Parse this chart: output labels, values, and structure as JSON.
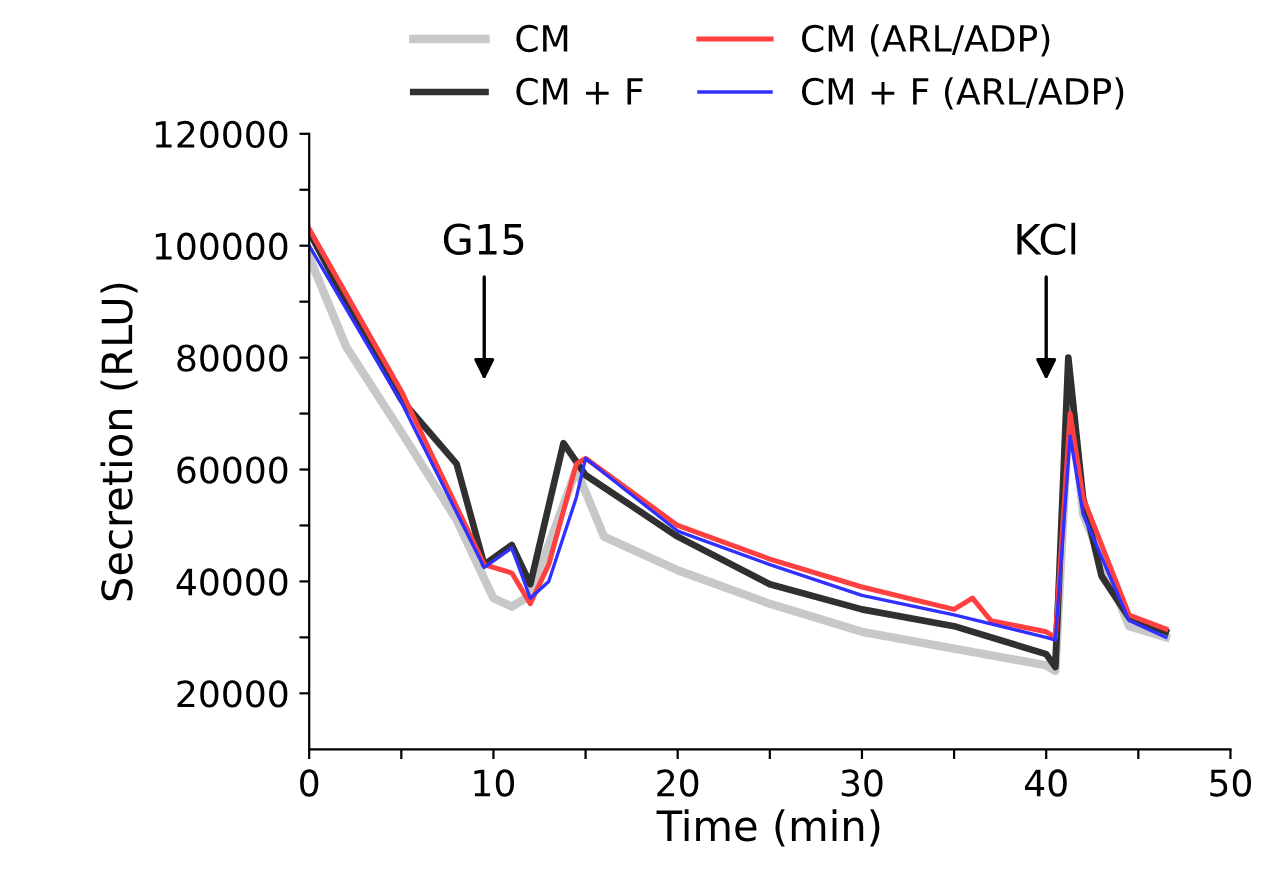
{
  "chart_data": {
    "type": "line",
    "xlabel": "Time (min)",
    "ylabel": "Secretion (RLU)",
    "xlim": [
      0,
      50
    ],
    "xticks": [
      0,
      {
        "value": 5,
        "label": null
      },
      10,
      {
        "value": 15,
        "label": null
      },
      20,
      {
        "value": 25,
        "label": null
      },
      30,
      {
        "value": 35,
        "label": null
      },
      40,
      {
        "value": 45,
        "label": null
      },
      50
    ],
    "ylim": [
      10000,
      120000
    ],
    "yticks": [
      20000,
      {
        "value": 30000,
        "label": null
      },
      40000,
      {
        "value": 50000,
        "label": null
      },
      60000,
      {
        "value": 70000,
        "label": null
      },
      80000,
      {
        "value": 90000,
        "label": null
      },
      100000,
      {
        "value": 110000,
        "label": null
      },
      120000
    ],
    "grid": false,
    "legend": "top",
    "marker": "none",
    "line_style": "solid",
    "series": [
      {
        "name": "CM",
        "color": "#c8c8c8",
        "x": [
          0,
          2,
          5,
          8,
          10,
          11,
          12,
          13,
          14.5,
          16,
          20,
          25,
          30,
          35,
          40,
          40.5,
          41.3,
          42,
          44.5,
          46.5
        ],
        "values": [
          98000,
          82000,
          66700,
          51000,
          37000,
          35500,
          37500,
          46500,
          60000,
          48000,
          42000,
          36000,
          31000,
          28000,
          25000,
          24000,
          75000,
          52000,
          32000,
          30000
        ]
      },
      {
        "name": "CM + F",
        "color": "#303030",
        "x": [
          0,
          2,
          5,
          8,
          9.5,
          11,
          12,
          13.8,
          15,
          20,
          25,
          30,
          35,
          40,
          40.5,
          41.2,
          42,
          43,
          44.5,
          46.5
        ],
        "values": [
          102500,
          90000,
          72500,
          61000,
          43000,
          46500,
          39500,
          64700,
          59000,
          48000,
          39500,
          35000,
          32000,
          27000,
          24700,
          80000,
          55000,
          41000,
          33500,
          31000
        ]
      },
      {
        "name": "CM (ARL/ADP)",
        "color": "#ff4040",
        "x": [
          0,
          5,
          9.5,
          11,
          12,
          13,
          14.5,
          15,
          20,
          25,
          30,
          35,
          36,
          37,
          40,
          40.5,
          41.3,
          42,
          44.5,
          46.5
        ],
        "values": [
          103000,
          74000,
          43000,
          41500,
          36000,
          43000,
          61000,
          62000,
          50000,
          44000,
          39000,
          35000,
          37000,
          33000,
          31000,
          30000,
          70000,
          55000,
          34000,
          31500
        ]
      },
      {
        "name": "CM + F (ARL/ADP)",
        "color": "#3030ff",
        "x": [
          0,
          5,
          9.5,
          11,
          12,
          13,
          14.5,
          15,
          20,
          25,
          30,
          35,
          40,
          40.5,
          41.3,
          42,
          44.5,
          46.5
        ],
        "values": [
          100000,
          72000,
          42500,
          46000,
          37000,
          40000,
          55000,
          62000,
          49000,
          43000,
          37500,
          34000,
          30000,
          29500,
          66000,
          52000,
          33000,
          30000
        ]
      }
    ],
    "annotations": [
      "G15",
      "KCl"
    ]
  }
}
